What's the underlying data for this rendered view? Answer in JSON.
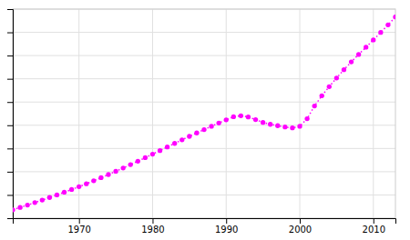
{
  "chart_data": {
    "type": "line",
    "x": [
      1961,
      1962,
      1963,
      1964,
      1965,
      1966,
      1967,
      1968,
      1969,
      1970,
      1971,
      1972,
      1973,
      1974,
      1975,
      1976,
      1977,
      1978,
      1979,
      1980,
      1981,
      1982,
      1983,
      1984,
      1985,
      1986,
      1987,
      1988,
      1989,
      1990,
      1991,
      1992,
      1993,
      1994,
      1995,
      1996,
      1997,
      1998,
      1999,
      2000,
      2001,
      2002,
      2003,
      2004,
      2005,
      2006,
      2007,
      2008,
      2009,
      2010,
      2011,
      2012,
      2013
    ],
    "series": [
      {
        "color": "#ff00ff",
        "marker": "circle",
        "line_style": "dotted",
        "values": [
          2180355,
          2230568,
          2282484,
          2335573,
          2389779,
          2444971,
          2501218,
          2558736,
          2617759,
          2678509,
          2741011,
          2805188,
          2871171,
          2938971,
          3008461,
          3079832,
          3152673,
          3226855,
          3302147,
          3378319,
          3455128,
          3532490,
          3609590,
          3685987,
          3760700,
          3834165,
          3906466,
          3977918,
          4048000,
          4116000,
          4183000,
          4205000,
          4179000,
          4122000,
          4061000,
          4020000,
          3991000,
          3962000,
          3943000,
          3978000,
          4140000,
          4415000,
          4634000,
          4830000,
          5017000,
          5195000,
          5364000,
          5524000,
          5679000,
          5836000,
          5997000,
          6161000,
          6330000
        ]
      }
    ],
    "xlim": [
      1961,
      2013
    ],
    "ylim": [
      2000000,
      6500000
    ],
    "xticks": [
      1970,
      1980,
      1990,
      2000,
      2010
    ],
    "yticks": [
      2000000,
      2500000,
      3000000,
      3500000,
      4000000,
      4500000,
      5000000,
      5500000,
      6000000,
      6500000
    ],
    "grid": true,
    "tick_labels": "x"
  }
}
